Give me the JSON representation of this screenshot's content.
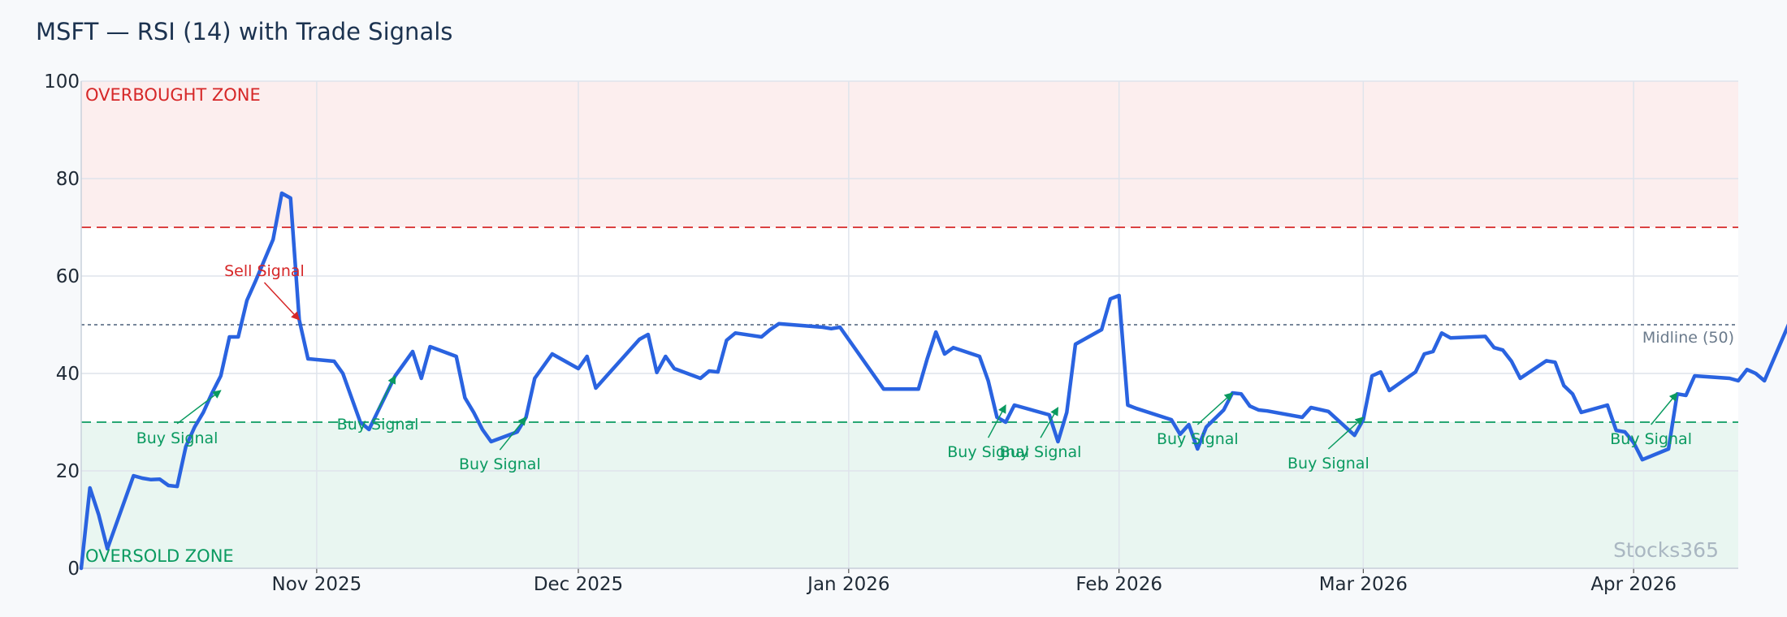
{
  "chart_data": {
    "type": "line",
    "title": "MSFT — RSI (14) with Trade Signals",
    "ylim": [
      0,
      100
    ],
    "yticks": [
      0,
      20,
      40,
      60,
      80,
      100
    ],
    "xlim": [
      "2025-10-05",
      "2026-04-13"
    ],
    "xticks": [
      {
        "date": "2025-11-01",
        "label": "Nov 2025"
      },
      {
        "date": "2025-12-01",
        "label": "Dec 2025"
      },
      {
        "date": "2026-01-01",
        "label": "Jan 2026"
      },
      {
        "date": "2026-02-01",
        "label": "Feb 2026"
      },
      {
        "date": "2026-03-01",
        "label": "Mar 2026"
      },
      {
        "date": "2026-04-01",
        "label": "Apr 2026"
      }
    ],
    "overbought": {
      "level": 70,
      "label": "OVERBOUGHT ZONE",
      "color": "#d62728"
    },
    "oversold": {
      "level": 30,
      "label": "OVERSOLD ZONE",
      "color": "#0a9a60"
    },
    "midline": {
      "level": 50,
      "label": "Midline (50)"
    },
    "line_color": "#2a63e0",
    "series": [
      {
        "values": [
          [
            "2025-10-05",
            0
          ],
          [
            "2025-10-06",
            16.5
          ],
          [
            "2025-10-07",
            11
          ],
          [
            "2025-10-08",
            4
          ],
          [
            "2025-10-11",
            19
          ],
          [
            "2025-10-12",
            18.5
          ],
          [
            "2025-10-13",
            18.2
          ],
          [
            "2025-10-14",
            18.3
          ],
          [
            "2025-10-15",
            17
          ],
          [
            "2025-10-16",
            16.8
          ],
          [
            "2025-10-17",
            25
          ],
          [
            "2025-10-18",
            29
          ],
          [
            "2025-10-19",
            32
          ],
          [
            "2025-10-20",
            36
          ],
          [
            "2025-10-21",
            39.5
          ],
          [
            "2025-10-22",
            47.5
          ],
          [
            "2025-10-23",
            47.5
          ],
          [
            "2025-10-24",
            55
          ],
          [
            "2025-10-25",
            59
          ],
          [
            "2025-10-27",
            67.5
          ],
          [
            "2025-10-28",
            77
          ],
          [
            "2025-10-29",
            76
          ],
          [
            "2025-10-30",
            51
          ],
          [
            "2025-10-31",
            43
          ],
          [
            "2025-11-03",
            42.5
          ],
          [
            "2025-11-04",
            40
          ],
          [
            "2025-11-06",
            30
          ],
          [
            "2025-11-07",
            28.5
          ],
          [
            "2025-11-10",
            39.5
          ],
          [
            "2025-11-11",
            42
          ],
          [
            "2025-11-12",
            44.5
          ],
          [
            "2025-11-13",
            39
          ],
          [
            "2025-11-14",
            45.5
          ],
          [
            "2025-11-17",
            43.5
          ],
          [
            "2025-11-18",
            35
          ],
          [
            "2025-11-19",
            32
          ],
          [
            "2025-11-20",
            28.5
          ],
          [
            "2025-11-21",
            26
          ],
          [
            "2025-11-24",
            28
          ],
          [
            "2025-11-25",
            31
          ],
          [
            "2025-11-26",
            39
          ],
          [
            "2025-11-28",
            44
          ],
          [
            "2025-12-01",
            41
          ],
          [
            "2025-12-02",
            43.5
          ],
          [
            "2025-12-03",
            37
          ],
          [
            "2025-12-04",
            39
          ],
          [
            "2025-12-08",
            47
          ],
          [
            "2025-12-09",
            48
          ],
          [
            "2025-12-10",
            40.2
          ],
          [
            "2025-12-11",
            43.5
          ],
          [
            "2025-12-12",
            41
          ],
          [
            "2025-12-15",
            39
          ],
          [
            "2025-12-16",
            40.5
          ],
          [
            "2025-12-17",
            40.3
          ],
          [
            "2025-12-18",
            46.8
          ],
          [
            "2025-12-19",
            48.3
          ],
          [
            "2025-12-22",
            47.5
          ],
          [
            "2025-12-23",
            49
          ],
          [
            "2025-12-24",
            50.2
          ],
          [
            "2025-12-29",
            49.5
          ],
          [
            "2025-12-30",
            49.2
          ],
          [
            "2025-12-31",
            49.5
          ],
          [
            "2026-01-05",
            36.8
          ],
          [
            "2026-01-09",
            36.8
          ],
          [
            "2026-01-10",
            43
          ],
          [
            "2026-01-11",
            48.5
          ],
          [
            "2026-01-12",
            44
          ],
          [
            "2026-01-13",
            45.3
          ],
          [
            "2026-01-16",
            43.5
          ],
          [
            "2026-01-17",
            38.5
          ],
          [
            "2026-01-18",
            31
          ],
          [
            "2026-01-19",
            30
          ],
          [
            "2026-01-20",
            33.5
          ],
          [
            "2026-01-24",
            31.5
          ],
          [
            "2026-01-25",
            26
          ],
          [
            "2026-01-26",
            32
          ],
          [
            "2026-01-27",
            46
          ],
          [
            "2026-01-30",
            49
          ],
          [
            "2026-01-31",
            55.3
          ],
          [
            "2026-02-01",
            56
          ],
          [
            "2026-02-02",
            33.5
          ],
          [
            "2026-02-03",
            32.8
          ],
          [
            "2026-02-07",
            30.5
          ],
          [
            "2026-02-08",
            27.5
          ],
          [
            "2026-02-09",
            29.5
          ],
          [
            "2026-02-10",
            24.5
          ],
          [
            "2026-02-11",
            29
          ],
          [
            "2026-02-13",
            32.5
          ],
          [
            "2026-02-14",
            36
          ],
          [
            "2026-02-15",
            35.8
          ],
          [
            "2026-02-16",
            33.3
          ],
          [
            "2026-02-17",
            32.5
          ],
          [
            "2026-02-18",
            32.3
          ],
          [
            "2026-02-22",
            31
          ],
          [
            "2026-02-23",
            33
          ],
          [
            "2026-02-25",
            32.2
          ],
          [
            "2026-02-28",
            27.3
          ],
          [
            "2026-03-01",
            30.5
          ],
          [
            "2026-03-02",
            39.5
          ],
          [
            "2026-03-03",
            40.3
          ],
          [
            "2026-03-04",
            36.5
          ],
          [
            "2026-03-07",
            40.3
          ],
          [
            "2026-03-08",
            44
          ],
          [
            "2026-03-09",
            44.5
          ],
          [
            "2026-03-10",
            48.3
          ],
          [
            "2026-03-11",
            47.3
          ],
          [
            "2026-03-15",
            47.6
          ],
          [
            "2026-03-16",
            45.3
          ],
          [
            "2026-03-17",
            44.8
          ],
          [
            "2026-03-18",
            42.5
          ],
          [
            "2026-03-19",
            39
          ],
          [
            "2026-03-22",
            42.6
          ],
          [
            "2026-03-23",
            42.3
          ],
          [
            "2026-03-24",
            37.5
          ],
          [
            "2026-03-25",
            35.8
          ],
          [
            "2026-03-26",
            32
          ],
          [
            "2026-03-29",
            33.5
          ],
          [
            "2026-03-30",
            28.3
          ],
          [
            "2026-03-31",
            28
          ],
          [
            "2026-04-01",
            25.8
          ],
          [
            "2026-04-02",
            22.3
          ],
          [
            "2026-04-05",
            24.5
          ],
          [
            "2026-04-06",
            35.8
          ],
          [
            "2026-04-07",
            35.5
          ],
          [
            "2026-04-08",
            39.5
          ],
          [
            "2026-04-12",
            39
          ],
          [
            "2026-04-13",
            38.5
          ],
          [
            "2026-04-14",
            40.8
          ],
          [
            "2026-04-15",
            40
          ],
          [
            "2026-04-16",
            38.5
          ],
          [
            "2026-04-19",
            51
          ]
        ]
      }
    ],
    "annotations": [
      {
        "label": "Sell Signal",
        "kind": "sell",
        "point": [
          "2025-10-30",
          51
        ],
        "text": [
          "2025-10-26",
          60
        ]
      },
      {
        "label": "Buy Signal",
        "kind": "buy",
        "point": [
          "2025-10-21",
          36.5
        ],
        "text": [
          "2025-10-16",
          25.7
        ]
      },
      {
        "label": "Buy Signal",
        "kind": "buy",
        "point": [
          "2025-11-10",
          39.5
        ],
        "text": [
          "2025-11-08",
          28.5
        ]
      },
      {
        "label": "Buy Signal",
        "kind": "buy",
        "point": [
          "2025-11-25",
          31
        ],
        "text": [
          "2025-11-22",
          20.3
        ]
      },
      {
        "label": "Buy Signal",
        "kind": "buy",
        "point": [
          "2026-01-19",
          33.5
        ],
        "text": [
          "2026-01-17",
          22.8
        ]
      },
      {
        "label": "Buy Signal",
        "kind": "buy",
        "point": [
          "2026-01-25",
          33
        ],
        "text": [
          "2026-01-23",
          22.8
        ]
      },
      {
        "label": "Buy Signal",
        "kind": "buy",
        "point": [
          "2026-02-14",
          36
        ],
        "text": [
          "2026-02-10",
          25.5
        ]
      },
      {
        "label": "Buy Signal",
        "kind": "buy",
        "point": [
          "2026-03-01",
          31
        ],
        "text": [
          "2026-02-25",
          20.5
        ]
      },
      {
        "label": "Buy Signal",
        "kind": "buy",
        "point": [
          "2026-04-06",
          36
        ],
        "text": [
          "2026-04-03",
          25.5
        ]
      }
    ],
    "watermark": "Stocks365",
    "grid": true
  }
}
